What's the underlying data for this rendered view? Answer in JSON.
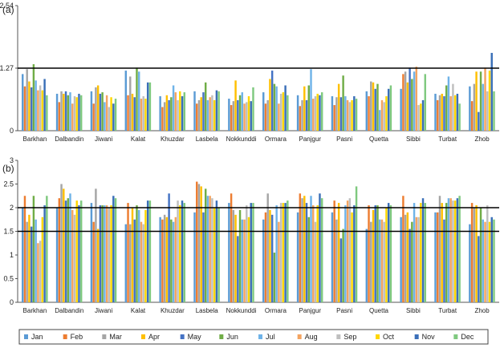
{
  "figure": {
    "months": [
      "Jan",
      "Feb",
      "Mar",
      "Apr",
      "May",
      "Jun",
      "Jul",
      "Aug",
      "Sep",
      "Oct",
      "Nov",
      "Dec"
    ],
    "colors": [
      "#5b9bd5",
      "#ed7d31",
      "#a5a5a5",
      "#ffc000",
      "#4472c4",
      "#70ad47",
      "#6fb3e8",
      "#f4a460",
      "#bfbfbf",
      "#ffd700",
      "#3a6fb8",
      "#7fc97f"
    ]
  },
  "chart_data": [
    {
      "type": "bar",
      "panel_label": "(a)",
      "categories": [
        "Barkhan",
        "Dalbandin",
        "Jiwani",
        "Kalat",
        "Khuzdar",
        "Lasbela",
        "Nokkunddi",
        "Ormara",
        "Panjgur",
        "Pasni",
        "Quetta",
        "Sibbi",
        "Turbat",
        "Zhob"
      ],
      "ylim": [
        0,
        2.54
      ],
      "yticks": [
        0,
        1.27,
        2.54
      ],
      "ytick_labels": [
        "0",
        "1.27",
        "2.54"
      ],
      "reference_lines": [
        1.27
      ],
      "series": [
        {
          "values": [
            1.15,
            0.75,
            0.8,
            1.22,
            0.7,
            0.8,
            0.65,
            0.78,
            0.72,
            0.7,
            0.8,
            0.85,
            0.75,
            0.9
          ]
        },
        {
          "values": [
            0.9,
            0.58,
            0.55,
            0.72,
            0.48,
            0.55,
            0.52,
            0.55,
            0.5,
            0.52,
            0.7,
            1.15,
            0.62,
            0.6
          ]
        },
        {
          "values": [
            1.25,
            0.8,
            0.88,
            1.1,
            0.58,
            0.62,
            0.6,
            0.62,
            0.62,
            0.68,
            1.0,
            1.2,
            0.72,
            0.95
          ]
        },
        {
          "values": [
            1.0,
            0.75,
            0.92,
            0.75,
            0.72,
            0.68,
            1.02,
            1.05,
            0.9,
            0.95,
            0.98,
            0.98,
            0.75,
            1.2
          ]
        },
        {
          "values": [
            0.88,
            0.8,
            0.75,
            0.68,
            0.62,
            0.78,
            0.62,
            1.22,
            0.62,
            0.68,
            0.85,
            1.28,
            0.7,
            0.38
          ]
        },
        {
          "values": [
            1.35,
            0.72,
            0.78,
            1.28,
            0.68,
            0.98,
            0.72,
            0.95,
            0.92,
            1.12,
            0.95,
            1.05,
            0.92,
            1.2
          ]
        },
        {
          "values": [
            1.02,
            0.78,
            0.58,
            1.2,
            0.92,
            0.62,
            0.78,
            0.9,
            1.25,
            0.7,
            0.42,
            1.2,
            1.1,
            0.95
          ]
        },
        {
          "values": [
            0.82,
            0.55,
            0.72,
            0.65,
            0.78,
            0.68,
            0.55,
            0.55,
            0.65,
            0.62,
            0.62,
            1.3,
            0.7,
            1.28
          ]
        },
        {
          "values": [
            0.92,
            0.7,
            0.48,
            0.7,
            0.62,
            0.72,
            0.58,
            0.75,
            0.7,
            0.58,
            0.58,
            0.52,
            0.95,
            0.8
          ]
        },
        {
          "values": [
            0.82,
            0.68,
            0.68,
            0.65,
            0.8,
            0.62,
            0.7,
            0.78,
            0.75,
            0.62,
            0.7,
            0.55,
            0.72,
            1.22
          ]
        },
        {
          "values": [
            1.05,
            0.75,
            0.55,
            0.98,
            0.7,
            0.82,
            0.6,
            0.92,
            0.72,
            0.7,
            0.85,
            0.62,
            0.75,
            1.58
          ]
        },
        {
          "values": [
            0.72,
            0.72,
            0.65,
            0.98,
            0.78,
            0.8,
            0.88,
            0.72,
            0.78,
            0.65,
            0.92,
            1.15,
            0.55,
            0.8
          ]
        }
      ]
    },
    {
      "type": "bar",
      "panel_label": "(b)",
      "categories": [
        "Barkhan",
        "Dalbandin",
        "Jiwani",
        "Kalat",
        "Khuzdar",
        "Lasbela",
        "Nokkunddi",
        "Ormara",
        "Panjgur",
        "Pasni",
        "Quetta",
        "Sibbi",
        "Turbat",
        "Zhob"
      ],
      "ylim": [
        0,
        3
      ],
      "yticks": [
        0,
        0.5,
        1,
        1.5,
        2,
        2.5,
        3
      ],
      "ytick_labels": [
        "0",
        "0.5",
        "1",
        "1.5",
        "2",
        "2.5",
        "3"
      ],
      "reference_lines": [
        1.5,
        2
      ],
      "series": [
        {
          "values": [
            2.0,
            2.0,
            2.1,
            1.65,
            1.8,
            1.9,
            2.1,
            1.75,
            1.9,
            1.9,
            1.55,
            1.8,
            1.9,
            1.65
          ]
        },
        {
          "values": [
            2.25,
            2.2,
            1.7,
            2.1,
            1.75,
            2.55,
            2.3,
            1.9,
            2.3,
            2.15,
            2.05,
            2.25,
            1.9,
            2.1
          ]
        },
        {
          "values": [
            1.7,
            2.5,
            2.4,
            1.65,
            1.85,
            2.5,
            1.95,
            2.3,
            2.2,
            1.75,
            1.7,
            1.85,
            2.25,
            2.0
          ]
        },
        {
          "values": [
            1.85,
            2.4,
            1.55,
            2.0,
            1.8,
            2.45,
            1.85,
            1.95,
            2.25,
            2.1,
            1.95,
            1.9,
            2.1,
            2.05
          ]
        },
        {
          "values": [
            1.6,
            2.15,
            2.05,
            1.75,
            2.3,
            1.9,
            1.4,
            1.85,
            2.1,
            1.35,
            2.05,
            1.55,
            1.75,
            1.4
          ]
        },
        {
          "values": [
            2.25,
            2.2,
            2.05,
            2.05,
            1.75,
            2.4,
            1.95,
            1.05,
            1.8,
            1.55,
            2.05,
            1.7,
            2.1,
            2.0
          ]
        },
        {
          "values": [
            1.75,
            2.3,
            2.05,
            1.95,
            1.7,
            2.25,
            1.75,
            2.05,
            2.25,
            2.05,
            1.75,
            2.1,
            2.2,
            1.75
          ]
        },
        {
          "values": [
            1.25,
            1.95,
            2.05,
            1.7,
            1.8,
            2.25,
            1.75,
            1.7,
            2.05,
            2.15,
            1.75,
            1.8,
            2.2,
            1.7
          ]
        },
        {
          "values": [
            1.3,
            1.85,
            2.0,
            1.65,
            2.15,
            2.2,
            2.05,
            2.1,
            1.7,
            2.2,
            1.7,
            1.8,
            2.15,
            2.05
          ]
        },
        {
          "values": [
            1.8,
            2.15,
            2.05,
            1.95,
            2.05,
            2.0,
            1.8,
            2.1,
            2.05,
            1.9,
            2.0,
            2.1,
            2.15,
            1.7
          ]
        },
        {
          "values": [
            2.05,
            2.05,
            2.25,
            2.15,
            2.15,
            2.15,
            2.1,
            2.1,
            2.3,
            2.05,
            2.1,
            2.2,
            2.2,
            1.8
          ]
        },
        {
          "values": [
            2.25,
            2.15,
            2.2,
            2.15,
            2.1,
            2.0,
            2.1,
            2.15,
            2.2,
            2.45,
            2.05,
            2.1,
            2.25,
            1.75
          ]
        }
      ]
    }
  ]
}
